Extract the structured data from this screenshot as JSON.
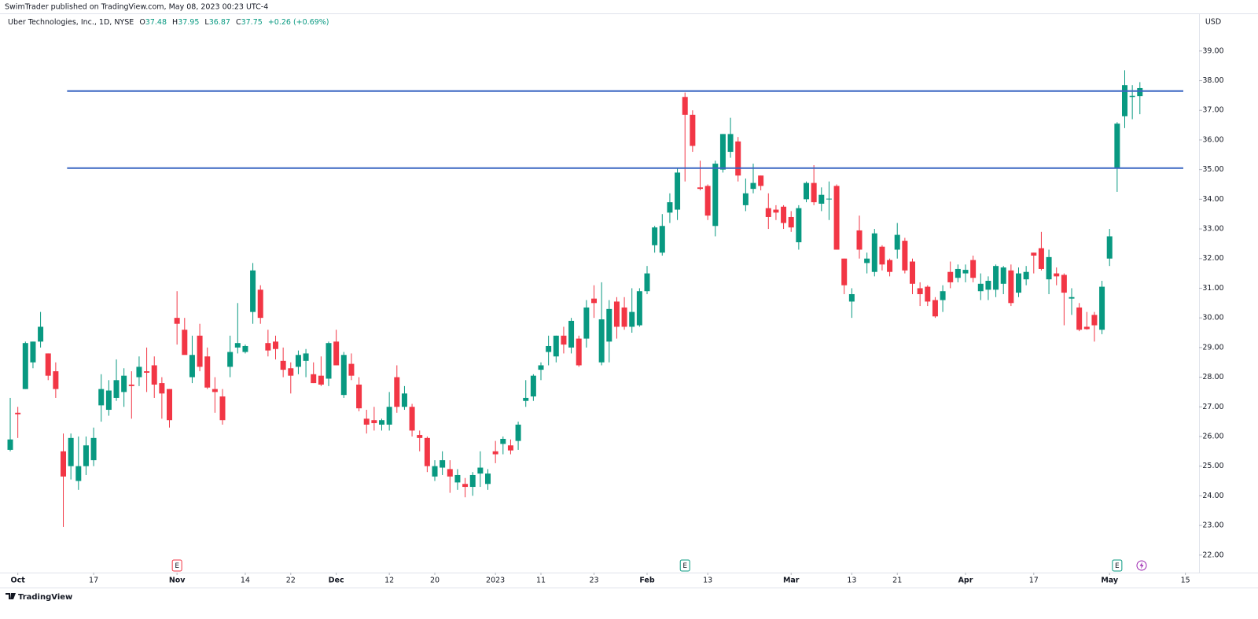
{
  "publisher": "SwimTrader published on TradingView.com, May 08, 2023 00:23 UTC-4",
  "footer": "TradingView",
  "chart_data": {
    "type": "candlestick",
    "title": "Uber Technologies, Inc., 1D, NYSE",
    "ohlc_labels": [
      "O",
      "H",
      "L",
      "C"
    ],
    "change": "+0.26 (+0.69%)",
    "currency": "USD",
    "up_color": "#089981",
    "down_color": "#f23645",
    "open": [
      25.55,
      26.8,
      27.6,
      28.5,
      29.2,
      28.8,
      28.2,
      25.5,
      25.0,
      24.5,
      25.0,
      25.2,
      27.05,
      26.9,
      27.3,
      27.5,
      27.75,
      28.0,
      28.2,
      28.4,
      27.8,
      27.6,
      30.0,
      29.6,
      28.0,
      29.4,
      28.7,
      27.6,
      27.35,
      28.35,
      29.0,
      28.85,
      30.2,
      30.95,
      29.15,
      29.2,
      28.55,
      28.3,
      28.35,
      28.55,
      28.1,
      28.05,
      27.95,
      29.2,
      27.4,
      28.45,
      27.75,
      26.6,
      26.55,
      26.4,
      26.4,
      28.0,
      27.0,
      27.0,
      26.05,
      25.95,
      24.65,
      24.95,
      24.9,
      24.45,
      24.4,
      24.3,
      24.75,
      24.4,
      25.5,
      25.75,
      25.7,
      25.85,
      27.2,
      27.35,
      28.25,
      28.85,
      28.7,
      29.4,
      29.0,
      29.3,
      29.3,
      30.65,
      28.5,
      29.2,
      30.55,
      30.35,
      29.7,
      29.75,
      30.9,
      32.45,
      32.2,
      33.55,
      33.65,
      37.45,
      36.85,
      34.4,
      34.45,
      33.1,
      35.0,
      35.6,
      35.95,
      33.8,
      34.35,
      34.8,
      33.7,
      33.65,
      33.75,
      33.4,
      32.55,
      34.0,
      34.55,
      33.85,
      34.0,
      34.45,
      32.0,
      30.55,
      32.95,
      31.85,
      31.55,
      32.4,
      31.95,
      32.3,
      32.6,
      31.9,
      31.0,
      31.05,
      30.6,
      30.6,
      31.55,
      31.35,
      31.5,
      31.95,
      30.9,
      30.95,
      30.95,
      31.15,
      31.6,
      30.85,
      31.3,
      32.2,
      32.35,
      31.3,
      31.5,
      31.45,
      30.65,
      30.35,
      29.7,
      30.1,
      29.6,
      32.0,
      35.05,
      36.8,
      37.45,
      37.48
    ],
    "high": [
      27.3,
      27.0,
      29.2,
      29.2,
      30.2,
      28.8,
      28.5,
      26.1,
      26.1,
      26.0,
      26.0,
      26.3,
      28.1,
      27.9,
      28.6,
      28.3,
      28.2,
      28.7,
      29.0,
      28.7,
      28.0,
      27.6,
      30.9,
      30.0,
      29.4,
      29.8,
      29.0,
      28.0,
      27.6,
      29.4,
      30.5,
      29.1,
      31.85,
      31.1,
      29.6,
      29.4,
      29.0,
      28.5,
      28.9,
      28.95,
      28.5,
      28.7,
      29.2,
      29.6,
      28.85,
      28.8,
      28.0,
      26.9,
      27.0,
      26.6,
      27.5,
      28.4,
      27.7,
      27.1,
      26.2,
      26.0,
      25.2,
      25.5,
      25.2,
      24.9,
      24.6,
      24.8,
      25.5,
      24.9,
      25.85,
      26.0,
      25.9,
      26.5,
      27.9,
      28.1,
      28.5,
      29.4,
      29.4,
      29.7,
      30.0,
      29.4,
      30.6,
      31.1,
      31.2,
      30.6,
      30.7,
      30.7,
      31.0,
      31.0,
      31.75,
      33.1,
      33.5,
      34.2,
      35.05,
      37.6,
      37.0,
      35.3,
      34.5,
      35.3,
      36.2,
      36.75,
      36.1,
      34.7,
      35.2,
      34.8,
      34.2,
      33.8,
      33.8,
      33.6,
      33.8,
      34.6,
      35.15,
      34.4,
      34.6,
      34.5,
      32.0,
      31.0,
      33.45,
      32.2,
      33.0,
      32.45,
      32.0,
      33.2,
      32.7,
      32.0,
      31.2,
      31.1,
      30.7,
      31.1,
      31.9,
      31.8,
      31.8,
      32.1,
      31.5,
      31.4,
      31.8,
      31.75,
      31.8,
      31.7,
      31.75,
      32.2,
      32.9,
      32.3,
      31.7,
      31.5,
      31.0,
      30.5,
      30.2,
      30.2,
      31.25,
      33.0,
      36.6,
      38.35,
      37.85,
      37.95
    ],
    "low": [
      25.5,
      25.95,
      27.6,
      28.3,
      29.0,
      27.9,
      27.3,
      22.95,
      24.55,
      24.2,
      24.7,
      25.0,
      26.5,
      26.7,
      27.2,
      27.0,
      26.6,
      27.7,
      27.5,
      27.3,
      26.6,
      26.3,
      29.1,
      28.8,
      27.8,
      28.2,
      27.6,
      26.8,
      26.4,
      28.0,
      28.8,
      28.8,
      29.8,
      29.8,
      28.7,
      28.6,
      28.0,
      27.45,
      28.1,
      28.0,
      27.8,
      27.7,
      27.7,
      28.4,
      27.3,
      27.9,
      26.85,
      26.1,
      26.2,
      26.2,
      26.2,
      26.8,
      26.9,
      26.0,
      25.5,
      24.8,
      24.5,
      24.7,
      24.1,
      24.2,
      23.95,
      24.0,
      24.3,
      24.2,
      25.1,
      25.4,
      25.4,
      25.55,
      27.0,
      27.2,
      27.9,
      28.4,
      28.5,
      28.8,
      28.8,
      28.35,
      29.0,
      30.0,
      28.4,
      28.5,
      29.3,
      29.6,
      29.5,
      29.7,
      30.8,
      32.2,
      32.1,
      33.2,
      33.3,
      34.6,
      35.6,
      34.3,
      33.3,
      32.75,
      34.9,
      35.4,
      34.6,
      33.6,
      34.2,
      34.3,
      33.0,
      33.3,
      33.0,
      32.9,
      32.3,
      33.9,
      33.8,
      33.6,
      33.3,
      32.3,
      30.8,
      30.0,
      32.0,
      31.5,
      31.4,
      31.6,
      31.4,
      32.0,
      31.5,
      30.8,
      30.4,
      30.4,
      30.0,
      30.2,
      31.0,
      31.2,
      31.2,
      31.2,
      30.6,
      30.6,
      30.7,
      30.8,
      30.4,
      30.7,
      31.1,
      31.5,
      31.6,
      30.8,
      31.1,
      29.75,
      30.1,
      29.55,
      29.6,
      29.2,
      29.45,
      31.75,
      34.25,
      36.4,
      36.7,
      36.87
    ],
    "close": [
      25.9,
      26.75,
      29.15,
      29.2,
      29.7,
      28.05,
      27.6,
      24.65,
      25.95,
      25.0,
      25.7,
      25.95,
      27.6,
      27.55,
      27.9,
      28.05,
      27.7,
      28.35,
      28.15,
      27.75,
      27.45,
      26.55,
      29.8,
      28.75,
      28.75,
      28.35,
      27.65,
      27.5,
      26.55,
      28.85,
      29.15,
      29.05,
      31.6,
      30.0,
      28.9,
      28.95,
      28.25,
      28.05,
      28.75,
      28.8,
      27.8,
      27.75,
      29.15,
      28.4,
      28.75,
      28.05,
      26.95,
      26.4,
      26.45,
      26.55,
      27.0,
      27.0,
      27.45,
      26.2,
      25.95,
      25.0,
      25.0,
      25.2,
      24.65,
      24.7,
      24.3,
      24.7,
      24.95,
      24.75,
      25.4,
      25.92,
      25.53,
      26.4,
      27.3,
      28.05,
      28.4,
      29.05,
      29.4,
      29.1,
      29.9,
      28.4,
      30.35,
      30.5,
      29.95,
      30.3,
      29.7,
      29.7,
      30.2,
      30.9,
      31.5,
      33.05,
      33.1,
      33.9,
      34.9,
      36.85,
      35.8,
      34.35,
      33.45,
      35.2,
      36.2,
      36.2,
      34.8,
      34.2,
      34.55,
      34.45,
      33.4,
      33.55,
      33.2,
      33.05,
      33.7,
      34.55,
      33.9,
      34.15,
      34.02,
      32.3,
      31.1,
      30.8,
      32.3,
      32.0,
      32.85,
      31.8,
      31.55,
      32.8,
      31.6,
      31.15,
      30.8,
      30.55,
      30.05,
      30.9,
      31.2,
      31.65,
      31.62,
      31.35,
      31.15,
      31.25,
      31.75,
      31.7,
      30.5,
      31.5,
      31.55,
      32.1,
      31.65,
      32.05,
      31.4,
      30.85,
      30.7,
      29.6,
      29.62,
      29.75,
      31.05,
      32.75,
      36.55,
      37.85,
      37.49,
      37.75
    ],
    "xlim": [
      -1.35,
      156.8
    ],
    "xticks": [
      {
        "value": 1,
        "label": "Oct"
      },
      {
        "value": 11,
        "label": "17"
      },
      {
        "value": 22,
        "label": "Nov"
      },
      {
        "value": 31,
        "label": "14"
      },
      {
        "value": 37,
        "label": "22"
      },
      {
        "value": 43,
        "label": "Dec"
      },
      {
        "value": 50,
        "label": "12"
      },
      {
        "value": 56,
        "label": "20"
      },
      {
        "value": 64,
        "label": "2023"
      },
      {
        "value": 70,
        "label": "11"
      },
      {
        "value": 77,
        "label": "23"
      },
      {
        "value": 84,
        "label": "Feb"
      },
      {
        "value": 92,
        "label": "13"
      },
      {
        "value": 103,
        "label": "Mar"
      },
      {
        "value": 111,
        "label": "13"
      },
      {
        "value": 117,
        "label": "21"
      },
      {
        "value": 126,
        "label": "Apr"
      },
      {
        "value": 135,
        "label": "17"
      },
      {
        "value": 145,
        "label": "May"
      },
      {
        "value": 155,
        "label": "15"
      }
    ],
    "ylim": [
      21.41,
      40.72
    ],
    "yticks": [
      {
        "value": 22,
        "label": "22.00"
      },
      {
        "value": 23,
        "label": "23.00"
      },
      {
        "value": 24,
        "label": "24.00"
      },
      {
        "value": 25,
        "label": "25.00"
      },
      {
        "value": 26,
        "label": "26.00"
      },
      {
        "value": 27,
        "label": "27.00"
      },
      {
        "value": 28,
        "label": "28.00"
      },
      {
        "value": 29,
        "label": "29.00"
      },
      {
        "value": 30,
        "label": "30.00"
      },
      {
        "value": 31,
        "label": "31.00"
      },
      {
        "value": 32,
        "label": "32.00"
      },
      {
        "value": 33,
        "label": "33.00"
      },
      {
        "value": 34,
        "label": "34.00"
      },
      {
        "value": 35,
        "label": "35.00"
      },
      {
        "value": 36,
        "label": "36.00"
      },
      {
        "value": 37,
        "label": "37.00"
      },
      {
        "value": 38,
        "label": "38.00"
      },
      {
        "value": 39,
        "label": "39.00"
      }
    ],
    "grid": false,
    "hlines": [
      {
        "value": 37.65,
        "from": 7.5,
        "color": "#3a66c2"
      },
      {
        "value": 35.05,
        "from": 7.5,
        "color": "#3a66c2"
      }
    ],
    "events": [
      {
        "label": "E",
        "x": 22,
        "color": "#f23645"
      },
      {
        "label": "E",
        "x": 89,
        "color": "#089981"
      },
      {
        "label": "E",
        "x": 146,
        "color": "#089981"
      }
    ]
  }
}
